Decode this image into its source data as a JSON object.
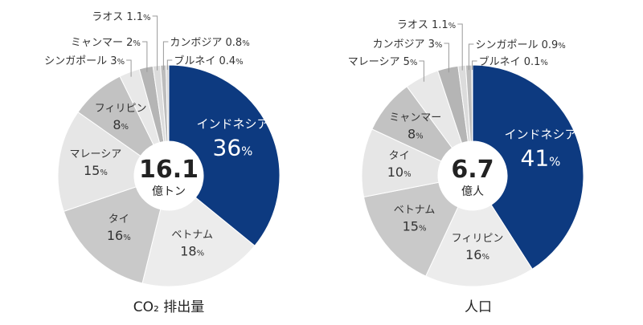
{
  "chart_data": [
    {
      "type": "pie",
      "variant": "donut",
      "title": "CO₂ 排出量",
      "center_value": "16.1",
      "center_unit": "億トン",
      "slices": [
        {
          "label": "インドネシア",
          "value": 36,
          "display": "36",
          "color": "#0d3a80",
          "text_color": "#ffffff",
          "big": true
        },
        {
          "label": "ベトナム",
          "value": 18,
          "display": "18",
          "color": "#ececec",
          "text_color": "#333333"
        },
        {
          "label": "タイ",
          "value": 16,
          "display": "16",
          "color": "#c9c9c9",
          "text_color": "#333333"
        },
        {
          "label": "マレーシア",
          "value": 15,
          "display": "15",
          "color": "#e6e6e6",
          "text_color": "#333333"
        },
        {
          "label": "フィリピン",
          "value": 8,
          "display": "8",
          "color": "#c2c2c2",
          "text_color": "#333333"
        },
        {
          "label": "シンガポール",
          "value": 3,
          "display": "3",
          "color": "#e8e8e8",
          "text_color": "#333333",
          "leader": true
        },
        {
          "label": "ミャンマー",
          "value": 2,
          "display": "2",
          "color": "#b5b5b5",
          "text_color": "#333333",
          "leader": true
        },
        {
          "label": "ラオス",
          "value": 1.1,
          "display": "1.1",
          "color": "#dcdcdc",
          "text_color": "#333333",
          "leader": true
        },
        {
          "label": "カンボジア",
          "value": 0.8,
          "display": "0.8",
          "color": "#bdbdbd",
          "text_color": "#333333",
          "leader": true
        },
        {
          "label": "ブルネイ",
          "value": 0.4,
          "display": "0.4",
          "color": "#d6d6d6",
          "text_color": "#333333",
          "leader": true
        }
      ],
      "unit": "%"
    },
    {
      "type": "pie",
      "variant": "donut",
      "title": "人口",
      "center_value": "6.7",
      "center_unit": "億人",
      "slices": [
        {
          "label": "インドネシア",
          "value": 41,
          "display": "41",
          "color": "#0d3a80",
          "text_color": "#ffffff",
          "big": true
        },
        {
          "label": "フィリピン",
          "value": 16,
          "display": "16",
          "color": "#ececec",
          "text_color": "#333333"
        },
        {
          "label": "ベトナム",
          "value": 15,
          "display": "15",
          "color": "#c9c9c9",
          "text_color": "#333333"
        },
        {
          "label": "タイ",
          "value": 10,
          "display": "10",
          "color": "#e6e6e6",
          "text_color": "#333333"
        },
        {
          "label": "ミャンマー",
          "value": 8,
          "display": "8",
          "color": "#c2c2c2",
          "text_color": "#333333"
        },
        {
          "label": "マレーシア",
          "value": 5,
          "display": "5",
          "color": "#e8e8e8",
          "text_color": "#333333",
          "leader": true
        },
        {
          "label": "カンボジア",
          "value": 3,
          "display": "3",
          "color": "#b5b5b5",
          "text_color": "#333333",
          "leader": true
        },
        {
          "label": "ラオス",
          "value": 1.1,
          "display": "1.1",
          "color": "#dcdcdc",
          "text_color": "#333333",
          "leader": true
        },
        {
          "label": "シンガポール",
          "value": 0.9,
          "display": "0.9",
          "color": "#bdbdbd",
          "text_color": "#333333",
          "leader": true
        },
        {
          "label": "ブルネイ",
          "value": 0.1,
          "display": "0.1",
          "color": "#d6d6d6",
          "text_color": "#333333",
          "leader": true
        }
      ],
      "unit": "%"
    }
  ]
}
